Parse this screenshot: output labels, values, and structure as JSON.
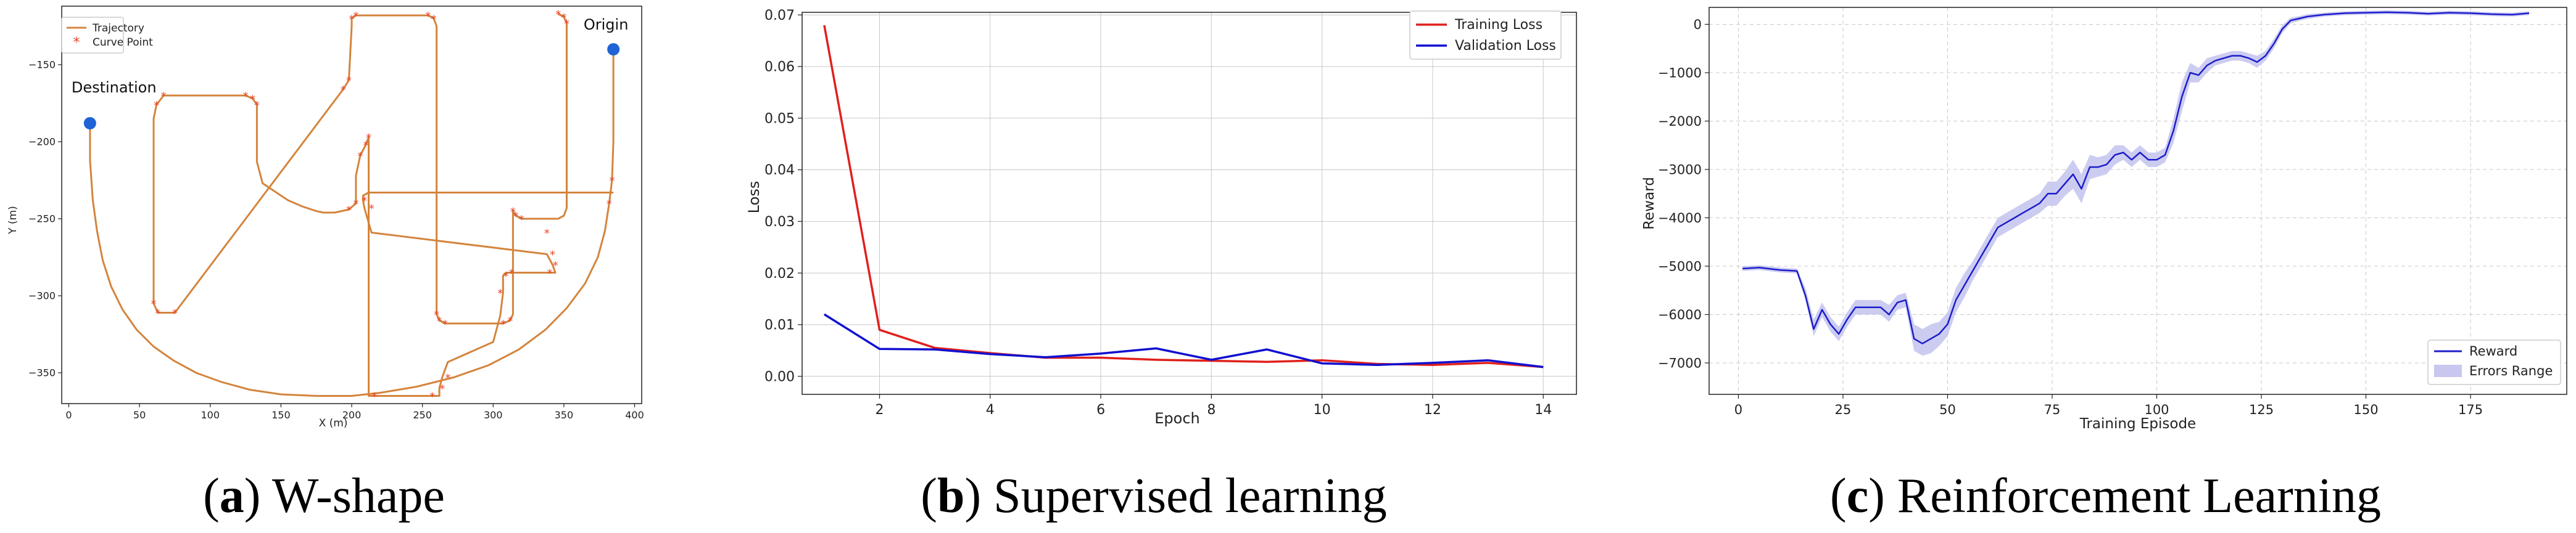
{
  "panels": [
    {
      "letter": "a",
      "caption": "W-shape"
    },
    {
      "letter": "b",
      "caption": "Supervised learning"
    },
    {
      "letter": "c",
      "caption": "Reinforcement Learning"
    }
  ],
  "chart_data": [
    {
      "type": "line",
      "xlabel": "X (m)",
      "ylabel": "Y (m)",
      "xlim": [
        -5,
        405
      ],
      "ylim": [
        -370,
        -112
      ],
      "xticks": [
        0,
        50,
        100,
        150,
        200,
        250,
        300,
        350,
        400
      ],
      "yticks": [
        -150,
        -200,
        -250,
        -300,
        -350
      ],
      "grid": false,
      "legend_position": "top-left",
      "colors": {
        "trajectory": "#d4843c",
        "curve_point": "#e8462a",
        "endpoint": "#1f63d6"
      },
      "series": [
        {
          "name": "Trajectory",
          "kind": "line",
          "x": [
            385,
            385,
            384,
            382,
            379,
            374,
            365,
            352,
            337,
            318,
            297,
            272,
            246,
            220,
            200,
            175,
            150,
            128,
            108,
            90,
            74,
            60,
            48,
            38,
            30,
            24,
            20,
            17,
            15,
            15
          ],
          "y": [
            -140,
            -200,
            -225,
            -240,
            -258,
            -275,
            -292,
            -308,
            -322,
            -335,
            -345,
            -353,
            -359,
            -363,
            -365,
            -365,
            -364,
            -361,
            -356,
            -350,
            -342,
            -333,
            -322,
            -309,
            -294,
            -277,
            -258,
            -238,
            -212,
            -188
          ]
        },
        {
          "name": "",
          "kind": "line",
          "x": [
            346,
            350,
            352,
            352,
            350,
            346,
            320,
            316,
            314,
            314,
            312,
            307,
            266,
            262,
            260,
            260,
            258,
            254,
            203,
            200,
            200,
            198,
            194,
            75,
            63,
            60,
            60,
            62,
            67,
            125,
            130,
            133,
            133,
            137,
            155,
            165,
            175,
            180,
            188,
            198,
            203,
            203,
            206,
            210,
            212,
            212,
            216,
            250,
            257,
            262,
            262,
            264,
            268,
            300,
            305,
            307,
            307,
            309,
            313,
            335,
            340,
            344,
            344,
            342,
            338,
            214,
            209,
            208,
            208,
            212,
            220,
            385
          ],
          "y": [
            -117,
            -119,
            -123,
            -243,
            -248,
            -250,
            -250,
            -248,
            -245,
            -312,
            -316,
            -318,
            -318,
            -316,
            -312,
            -125,
            -120,
            -118,
            -118,
            -120,
            -125,
            -160,
            -166,
            -311,
            -311,
            -305,
            -185,
            -176,
            -170,
            -170,
            -172,
            -176,
            -213,
            -227,
            -238,
            -242,
            -245,
            -246,
            -246,
            -244,
            -240,
            -222,
            -209,
            -202,
            -197,
            -365,
            -365,
            -365,
            -365,
            -365,
            -360,
            -353,
            -343,
            -330,
            -313,
            -298,
            -287,
            -285,
            -285,
            -285,
            -285,
            -285,
            -285,
            -280,
            -273,
            -259,
            -243,
            -238,
            -235,
            -233,
            -233,
            -233
          ]
        },
        {
          "name": "Curve Point",
          "kind": "scatter",
          "x": [
            384,
            382,
            352,
            350,
            346,
            320,
            316,
            314,
            312,
            307,
            266,
            262,
            260,
            258,
            254,
            203,
            200,
            198,
            194,
            75,
            63,
            60,
            62,
            67,
            125,
            130,
            133,
            198,
            203,
            206,
            210,
            212,
            216,
            257,
            264,
            268,
            305,
            309,
            313,
            340,
            344,
            342,
            338,
            214,
            209
          ],
          "y": [
            -225,
            -240,
            -123,
            -119,
            -117,
            -250,
            -248,
            -245,
            -316,
            -318,
            -318,
            -316,
            -312,
            -120,
            -118,
            -118,
            -120,
            -160,
            -166,
            -311,
            -311,
            -305,
            -176,
            -170,
            -170,
            -172,
            -176,
            -244,
            -240,
            -209,
            -202,
            -197,
            -365,
            -365,
            -360,
            -353,
            -298,
            -287,
            -285,
            -285,
            -280,
            -273,
            -259,
            -243,
            -238
          ]
        },
        {
          "name": "",
          "kind": "endpoints",
          "x": [
            385,
            15
          ],
          "y": [
            -140,
            -188
          ]
        }
      ],
      "annotations": [
        {
          "text": "Origin",
          "x": 385,
          "y": -140
        },
        {
          "text": "Destination",
          "x": 15,
          "y": -188
        }
      ]
    },
    {
      "type": "line",
      "xlabel": "Epoch",
      "ylabel": "Loss",
      "xlim": [
        0.6,
        14.6
      ],
      "ylim": [
        -0.0035,
        0.0705
      ],
      "xticks": [
        2,
        4,
        6,
        8,
        10,
        12,
        14
      ],
      "yticks": [
        0.0,
        0.01,
        0.02,
        0.03,
        0.04,
        0.05,
        0.06,
        0.07
      ],
      "grid": true,
      "legend_position": "top-right",
      "series": [
        {
          "name": "Training Loss",
          "color": "#e0201c",
          "x": [
            1,
            2,
            3,
            4,
            5,
            6,
            7,
            8,
            9,
            10,
            11,
            12,
            13,
            14
          ],
          "y": [
            0.068,
            0.009,
            0.0055,
            0.0045,
            0.0036,
            0.0036,
            0.0032,
            0.003,
            0.0028,
            0.0031,
            0.0024,
            0.0022,
            0.0026,
            0.0018
          ]
        },
        {
          "name": "Validation Loss",
          "color": "#1010d0",
          "x": [
            1,
            2,
            3,
            4,
            5,
            6,
            7,
            8,
            9,
            10,
            11,
            12,
            13,
            14
          ],
          "y": [
            0.012,
            0.0053,
            0.0052,
            0.0043,
            0.0037,
            0.0044,
            0.0054,
            0.0032,
            0.0052,
            0.0025,
            0.0022,
            0.0026,
            0.0031,
            0.0018
          ]
        }
      ]
    },
    {
      "type": "area",
      "xlabel": "Training Episode",
      "ylabel": "Reward",
      "xlim": [
        -7,
        198
      ],
      "ylim": [
        -7650,
        350
      ],
      "xticks": [
        0,
        25,
        50,
        75,
        100,
        125,
        150,
        175
      ],
      "yticks": [
        0,
        -1000,
        -2000,
        -3000,
        -4000,
        -5000,
        -6000,
        -7000
      ],
      "grid": true,
      "legend_position": "bottom-right",
      "series": [
        {
          "name": "Reward",
          "kind": "line",
          "color": "#1c1ccc",
          "x": [
            1,
            5,
            10,
            14,
            16,
            18,
            20,
            22,
            24,
            26,
            28,
            30,
            32,
            34,
            36,
            38,
            40,
            42,
            44,
            46,
            48,
            50,
            52,
            54,
            56,
            58,
            60,
            62,
            64,
            66,
            68,
            70,
            72,
            74,
            76,
            78,
            80,
            82,
            84,
            86,
            88,
            90,
            92,
            94,
            96,
            98,
            100,
            102,
            104,
            106,
            108,
            110,
            112,
            114,
            116,
            118,
            120,
            122,
            124,
            126,
            128,
            130,
            132,
            134,
            136,
            140,
            145,
            150,
            155,
            160,
            165,
            170,
            175,
            180,
            185,
            189
          ],
          "y": [
            -5050,
            -5030,
            -5080,
            -5100,
            -5600,
            -6300,
            -5900,
            -6200,
            -6400,
            -6100,
            -5850,
            -5850,
            -5850,
            -5850,
            -6000,
            -5750,
            -5700,
            -6500,
            -6600,
            -6500,
            -6400,
            -6200,
            -5700,
            -5400,
            -5100,
            -4800,
            -4500,
            -4200,
            -4100,
            -4000,
            -3900,
            -3800,
            -3700,
            -3500,
            -3500,
            -3300,
            -3100,
            -3400,
            -2950,
            -2950,
            -2900,
            -2700,
            -2650,
            -2800,
            -2650,
            -2800,
            -2800,
            -2700,
            -2200,
            -1500,
            -1000,
            -1050,
            -850,
            -750,
            -700,
            -650,
            -650,
            -700,
            -780,
            -650,
            -400,
            -100,
            80,
            120,
            160,
            200,
            230,
            240,
            250,
            240,
            220,
            240,
            230,
            210,
            200,
            230
          ]
        },
        {
          "name": "Errors Range",
          "kind": "band",
          "color": "#c7c7f0",
          "x": [
            1,
            5,
            10,
            14,
            16,
            18,
            20,
            22,
            24,
            26,
            28,
            30,
            32,
            34,
            36,
            38,
            40,
            42,
            44,
            46,
            48,
            50,
            52,
            54,
            56,
            58,
            60,
            62,
            64,
            66,
            68,
            70,
            72,
            74,
            76,
            78,
            80,
            82,
            84,
            86,
            88,
            90,
            92,
            94,
            96,
            98,
            100,
            102,
            104,
            106,
            108,
            110,
            112,
            114,
            116,
            118,
            120,
            122,
            124,
            126,
            128,
            130,
            132,
            134,
            136,
            140,
            145,
            150,
            155,
            160,
            165,
            170,
            175,
            180,
            185,
            189
          ],
          "y_low": [
            -5100,
            -5080,
            -5130,
            -5150,
            -5700,
            -6450,
            -6050,
            -6350,
            -6550,
            -6250,
            -6000,
            -6000,
            -6000,
            -6000,
            -6150,
            -5900,
            -5850,
            -6750,
            -6850,
            -6800,
            -6650,
            -6450,
            -5950,
            -5650,
            -5300,
            -5000,
            -4700,
            -4400,
            -4300,
            -4200,
            -4100,
            -4000,
            -3900,
            -3750,
            -3750,
            -3550,
            -3400,
            -3700,
            -3200,
            -3150,
            -3100,
            -2900,
            -2800,
            -2950,
            -2800,
            -2950,
            -2950,
            -2850,
            -2450,
            -1800,
            -1200,
            -1200,
            -1000,
            -850,
            -800,
            -750,
            -750,
            -800,
            -900,
            -750,
            -500,
            -180,
            20,
            70,
            110,
            160,
            190,
            200,
            210,
            200,
            180,
            200,
            190,
            170,
            160,
            190
          ],
          "y_high": [
            -5000,
            -4980,
            -5030,
            -5050,
            -5450,
            -6100,
            -5750,
            -6050,
            -6250,
            -5950,
            -5700,
            -5700,
            -5700,
            -5700,
            -5800,
            -5600,
            -5550,
            -6200,
            -6300,
            -6200,
            -6150,
            -5950,
            -5450,
            -5150,
            -4900,
            -4600,
            -4300,
            -4000,
            -3900,
            -3800,
            -3700,
            -3600,
            -3500,
            -3250,
            -3250,
            -3050,
            -2800,
            -3100,
            -2700,
            -2750,
            -2700,
            -2500,
            -2500,
            -2650,
            -2500,
            -2650,
            -2650,
            -2550,
            -1950,
            -1200,
            -800,
            -900,
            -700,
            -650,
            -600,
            -550,
            -550,
            -600,
            -650,
            -550,
            -300,
            -20,
            140,
            170,
            210,
            240,
            270,
            280,
            290,
            280,
            260,
            280,
            270,
            250,
            240,
            270
          ]
        }
      ]
    }
  ]
}
